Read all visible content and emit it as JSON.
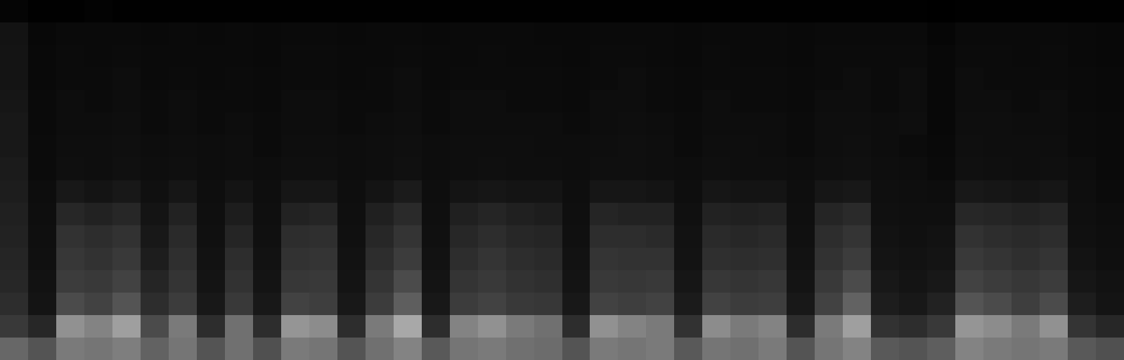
{
  "chart_data": {
    "type": "heatmap",
    "tick_labels": false,
    "cells": [
      [
        0.46,
        0.42,
        0.5,
        0.49,
        0.51,
        0.45,
        0.49,
        0.42,
        0.48,
        0.41,
        0.5,
        0.49,
        0.42,
        0.48,
        0.52,
        0.43,
        0.49,
        0.5,
        0.48,
        0.47,
        0.42,
        0.5,
        0.49,
        0.5,
        0.43,
        0.49,
        0.48,
        0.5,
        0.42,
        0.49,
        0.52,
        0.43,
        0.42,
        0.44,
        0.52,
        0.5,
        0.49,
        0.5,
        0.43,
        0.41
      ],
      [
        0.35,
        0.28,
        0.55,
        0.52,
        0.58,
        0.4,
        0.5,
        0.3,
        0.48,
        0.3,
        0.56,
        0.54,
        0.3,
        0.5,
        0.6,
        0.3,
        0.52,
        0.55,
        0.5,
        0.48,
        0.3,
        0.55,
        0.52,
        0.5,
        0.32,
        0.54,
        0.5,
        0.52,
        0.3,
        0.5,
        0.58,
        0.32,
        0.3,
        0.35,
        0.56,
        0.54,
        0.5,
        0.55,
        0.33,
        0.28
      ],
      [
        0.3,
        0.2,
        0.4,
        0.38,
        0.42,
        0.3,
        0.36,
        0.22,
        0.35,
        0.22,
        0.38,
        0.37,
        0.22,
        0.36,
        0.44,
        0.22,
        0.36,
        0.38,
        0.35,
        0.34,
        0.22,
        0.38,
        0.37,
        0.38,
        0.23,
        0.38,
        0.36,
        0.37,
        0.22,
        0.38,
        0.45,
        0.24,
        0.22,
        0.26,
        0.42,
        0.4,
        0.37,
        0.4,
        0.24,
        0.2
      ],
      [
        0.28,
        0.18,
        0.36,
        0.35,
        0.38,
        0.27,
        0.33,
        0.2,
        0.32,
        0.2,
        0.34,
        0.35,
        0.2,
        0.33,
        0.4,
        0.2,
        0.33,
        0.35,
        0.32,
        0.31,
        0.2,
        0.35,
        0.34,
        0.35,
        0.21,
        0.34,
        0.33,
        0.34,
        0.2,
        0.35,
        0.4,
        0.22,
        0.2,
        0.22,
        0.38,
        0.36,
        0.34,
        0.36,
        0.21,
        0.18
      ],
      [
        0.27,
        0.17,
        0.34,
        0.32,
        0.35,
        0.24,
        0.31,
        0.18,
        0.3,
        0.18,
        0.32,
        0.33,
        0.18,
        0.3,
        0.36,
        0.18,
        0.3,
        0.33,
        0.3,
        0.29,
        0.18,
        0.33,
        0.32,
        0.32,
        0.19,
        0.31,
        0.3,
        0.31,
        0.18,
        0.32,
        0.36,
        0.2,
        0.18,
        0.2,
        0.35,
        0.33,
        0.31,
        0.33,
        0.19,
        0.16
      ],
      [
        0.26,
        0.16,
        0.32,
        0.3,
        0.32,
        0.22,
        0.29,
        0.17,
        0.27,
        0.17,
        0.3,
        0.31,
        0.17,
        0.28,
        0.33,
        0.17,
        0.28,
        0.3,
        0.28,
        0.27,
        0.17,
        0.3,
        0.3,
        0.29,
        0.18,
        0.29,
        0.28,
        0.29,
        0.17,
        0.3,
        0.33,
        0.18,
        0.17,
        0.18,
        0.32,
        0.3,
        0.29,
        0.3,
        0.17,
        0.15
      ],
      [
        0.25,
        0.15,
        0.28,
        0.26,
        0.28,
        0.2,
        0.26,
        0.16,
        0.24,
        0.16,
        0.26,
        0.27,
        0.16,
        0.25,
        0.29,
        0.16,
        0.25,
        0.27,
        0.25,
        0.24,
        0.16,
        0.27,
        0.26,
        0.26,
        0.17,
        0.26,
        0.25,
        0.26,
        0.16,
        0.27,
        0.29,
        0.17,
        0.16,
        0.16,
        0.28,
        0.27,
        0.26,
        0.27,
        0.16,
        0.14
      ],
      [
        0.24,
        0.14,
        0.22,
        0.2,
        0.22,
        0.17,
        0.21,
        0.15,
        0.2,
        0.15,
        0.21,
        0.21,
        0.15,
        0.2,
        0.23,
        0.15,
        0.2,
        0.21,
        0.2,
        0.2,
        0.15,
        0.21,
        0.21,
        0.2,
        0.15,
        0.21,
        0.2,
        0.2,
        0.15,
        0.21,
        0.22,
        0.16,
        0.15,
        0.14,
        0.22,
        0.21,
        0.2,
        0.21,
        0.15,
        0.13
      ],
      [
        0.23,
        0.13,
        0.16,
        0.15,
        0.17,
        0.15,
        0.16,
        0.14,
        0.15,
        0.14,
        0.16,
        0.16,
        0.14,
        0.15,
        0.17,
        0.14,
        0.15,
        0.16,
        0.15,
        0.15,
        0.14,
        0.16,
        0.16,
        0.15,
        0.14,
        0.16,
        0.15,
        0.15,
        0.14,
        0.16,
        0.17,
        0.15,
        0.14,
        0.12,
        0.17,
        0.16,
        0.15,
        0.16,
        0.14,
        0.12
      ],
      [
        0.22,
        0.13,
        0.15,
        0.15,
        0.16,
        0.14,
        0.15,
        0.14,
        0.15,
        0.13,
        0.15,
        0.15,
        0.14,
        0.15,
        0.16,
        0.14,
        0.15,
        0.15,
        0.15,
        0.14,
        0.14,
        0.15,
        0.16,
        0.15,
        0.13,
        0.15,
        0.15,
        0.14,
        0.13,
        0.15,
        0.16,
        0.14,
        0.13,
        0.11,
        0.16,
        0.15,
        0.15,
        0.15,
        0.13,
        0.12
      ],
      [
        0.22,
        0.12,
        0.14,
        0.14,
        0.15,
        0.13,
        0.14,
        0.13,
        0.14,
        0.13,
        0.14,
        0.14,
        0.13,
        0.14,
        0.15,
        0.13,
        0.14,
        0.14,
        0.14,
        0.14,
        0.13,
        0.14,
        0.15,
        0.14,
        0.13,
        0.14,
        0.14,
        0.14,
        0.13,
        0.15,
        0.15,
        0.14,
        0.15,
        0.1,
        0.15,
        0.15,
        0.14,
        0.14,
        0.13,
        0.12
      ],
      [
        0.21,
        0.12,
        0.14,
        0.13,
        0.14,
        0.13,
        0.14,
        0.13,
        0.13,
        0.12,
        0.14,
        0.14,
        0.13,
        0.13,
        0.14,
        0.13,
        0.14,
        0.14,
        0.13,
        0.13,
        0.12,
        0.14,
        0.14,
        0.13,
        0.12,
        0.14,
        0.13,
        0.13,
        0.12,
        0.14,
        0.14,
        0.13,
        0.14,
        0.1,
        0.14,
        0.14,
        0.13,
        0.14,
        0.12,
        0.11
      ],
      [
        0.2,
        0.11,
        0.13,
        0.13,
        0.14,
        0.12,
        0.13,
        0.12,
        0.13,
        0.12,
        0.13,
        0.13,
        0.12,
        0.13,
        0.14,
        0.12,
        0.13,
        0.13,
        0.13,
        0.13,
        0.12,
        0.13,
        0.14,
        0.13,
        0.12,
        0.13,
        0.13,
        0.13,
        0.12,
        0.13,
        0.14,
        0.13,
        0.14,
        0.1,
        0.14,
        0.13,
        0.13,
        0.13,
        0.12,
        0.11
      ],
      [
        0.2,
        0.11,
        0.13,
        0.12,
        0.13,
        0.12,
        0.12,
        0.12,
        0.12,
        0.11,
        0.13,
        0.13,
        0.12,
        0.12,
        0.13,
        0.12,
        0.12,
        0.13,
        0.12,
        0.12,
        0.11,
        0.13,
        0.13,
        0.12,
        0.11,
        0.13,
        0.12,
        0.12,
        0.11,
        0.13,
        0.13,
        0.13,
        0.13,
        0.1,
        0.13,
        0.13,
        0.12,
        0.13,
        0.11,
        0.1
      ],
      [
        0.19,
        0.1,
        0.12,
        0.12,
        0.12,
        0.11,
        0.12,
        0.11,
        0.12,
        0.11,
        0.12,
        0.12,
        0.11,
        0.12,
        0.12,
        0.11,
        0.12,
        0.12,
        0.12,
        0.11,
        0.11,
        0.12,
        0.12,
        0.12,
        0.11,
        0.12,
        0.12,
        0.12,
        0.11,
        0.12,
        0.12,
        0.12,
        0.12,
        0.09,
        0.12,
        0.12,
        0.12,
        0.12,
        0.11,
        0.1
      ],
      [
        0.08,
        0.05,
        0.05,
        0.06,
        0.05,
        0.05,
        0.05,
        0.05,
        0.05,
        0.05,
        0.05,
        0.05,
        0.05,
        0.05,
        0.05,
        0.05,
        0.05,
        0.05,
        0.05,
        0.05,
        0.05,
        0.05,
        0.05,
        0.05,
        0.05,
        0.05,
        0.05,
        0.05,
        0.05,
        0.05,
        0.05,
        0.05,
        0.05,
        0.04,
        0.05,
        0.05,
        0.05,
        0.05,
        0.05,
        0.05
      ]
    ]
  }
}
